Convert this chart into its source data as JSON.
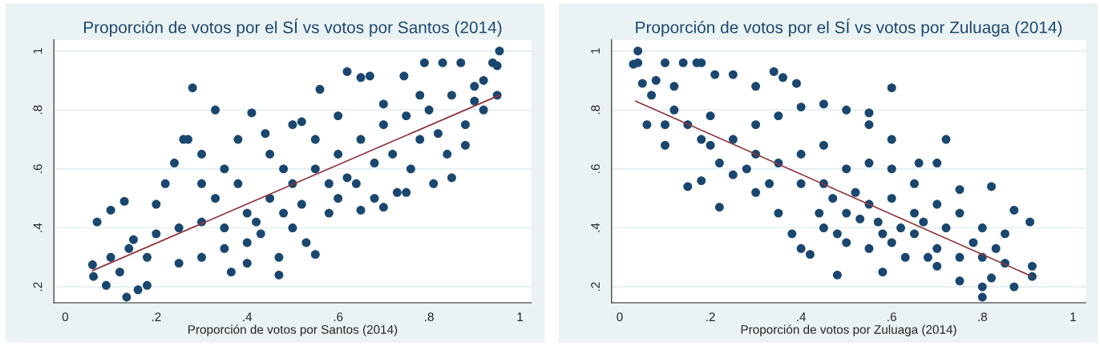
{
  "chart_data": [
    {
      "type": "scatter",
      "title": "Proporción de votos por el SÍ vs votos por Santos (2014)",
      "xlabel": "Proporción de votos por Santos (2014)",
      "xlim": [
        -0.025,
        1.025
      ],
      "ylim": [
        0.146,
        1.038
      ],
      "xticks": [
        0,
        {
          "value": 0.2,
          "label": ".2"
        },
        {
          "value": 0.4,
          "label": ".4"
        },
        {
          "value": 0.6,
          "label": ".6"
        },
        {
          "value": 0.8,
          "label": ".8"
        },
        1
      ],
      "yticks": [
        {
          "value": 0.2,
          "label": ".2"
        },
        {
          "value": 0.4,
          "label": ".4"
        },
        {
          "value": 0.6,
          "label": ".6"
        },
        {
          "value": 0.8,
          "label": ".8"
        },
        1
      ],
      "grid": "y",
      "marker": "circle",
      "series": [
        {
          "color": "#1a476f",
          "x": [
            0.955,
            0.28,
            0.135,
            0.06,
            0.062,
            0.07,
            0.09,
            0.1,
            0.13,
            0.16,
            0.18,
            0.365,
            0.47,
            0.55,
            0.33,
            0.41,
            0.56,
            0.62,
            0.65,
            0.67,
            0.745,
            0.79,
            0.83,
            0.87,
            0.94,
            0.95,
            0.9,
            0.95,
            0.81,
            0.85,
            0.7,
            0.75,
            0.65,
            0.73,
            0.6,
            0.5,
            0.52,
            0.44,
            0.26,
            0.27,
            0.22,
            0.24,
            0.2,
            0.15,
            0.1,
            0.12,
            0.2,
            0.25,
            0.3,
            0.35,
            0.4,
            0.35,
            0.4,
            0.45,
            0.5,
            0.55,
            0.6,
            0.65,
            0.7,
            0.75,
            0.8,
            0.85,
            0.9,
            0.3,
            0.35,
            0.45,
            0.55,
            0.6,
            0.7,
            0.78,
            0.42,
            0.48,
            0.52,
            0.58,
            0.62,
            0.68,
            0.72,
            0.78,
            0.82,
            0.88,
            0.92,
            0.3,
            0.25,
            0.18,
            0.14,
            0.33,
            0.38,
            0.43,
            0.5,
            0.53,
            0.47,
            0.4,
            0.3,
            0.38,
            0.48,
            0.58,
            0.64,
            0.68,
            0.76,
            0.84,
            0.88,
            0.92
          ],
          "values": [
            1.0,
            0.875,
            0.165,
            0.275,
            0.235,
            0.42,
            0.205,
            0.46,
            0.49,
            0.19,
            0.205,
            0.25,
            0.24,
            0.31,
            0.8,
            0.79,
            0.87,
            0.93,
            0.91,
            0.915,
            0.915,
            0.96,
            0.96,
            0.96,
            0.96,
            0.95,
            0.83,
            0.85,
            0.55,
            0.57,
            0.47,
            0.52,
            0.46,
            0.52,
            0.5,
            0.75,
            0.76,
            0.72,
            0.7,
            0.7,
            0.55,
            0.62,
            0.48,
            0.36,
            0.3,
            0.25,
            0.38,
            0.4,
            0.42,
            0.4,
            0.45,
            0.33,
            0.35,
            0.5,
            0.55,
            0.6,
            0.65,
            0.7,
            0.75,
            0.78,
            0.8,
            0.85,
            0.88,
            0.55,
            0.6,
            0.65,
            0.7,
            0.78,
            0.82,
            0.85,
            0.42,
            0.45,
            0.48,
            0.55,
            0.57,
            0.62,
            0.65,
            0.7,
            0.72,
            0.75,
            0.8,
            0.3,
            0.28,
            0.3,
            0.33,
            0.5,
            0.55,
            0.38,
            0.4,
            0.35,
            0.3,
            0.28,
            0.65,
            0.7,
            0.6,
            0.45,
            0.55,
            0.5,
            0.6,
            0.65,
            0.68,
            0.9
          ]
        },
        {
          "type": "line",
          "color": "#90353b",
          "marker": "none",
          "x": [
            0.06,
            0.955
          ],
          "values": [
            0.255,
            0.85
          ]
        }
      ]
    },
    {
      "type": "scatter",
      "title": "Proporción de votos por el SÍ vs votos por Zuluaga (2014)",
      "xlabel": "Proporción de votos por Zuluaga (2014)",
      "xlim": [
        -0.018,
        1.028
      ],
      "ylim": [
        0.146,
        1.038
      ],
      "xticks": [
        0,
        {
          "value": 0.2,
          "label": ".2"
        },
        {
          "value": 0.4,
          "label": ".4"
        },
        {
          "value": 0.6,
          "label": ".6"
        },
        {
          "value": 0.8,
          "label": ".8"
        },
        1
      ],
      "yticks": [
        {
          "value": 0.2,
          "label": ".2"
        },
        {
          "value": 0.4,
          "label": ".4"
        },
        {
          "value": 0.6,
          "label": ".6"
        },
        {
          "value": 0.8,
          "label": ".8"
        },
        1
      ],
      "grid": "y",
      "marker": "circle",
      "series": [
        {
          "color": "#1a476f",
          "x": [
            0.04,
            0.03,
            0.04,
            0.05,
            0.06,
            0.1,
            0.14,
            0.17,
            0.18,
            0.1,
            0.15,
            0.18,
            0.22,
            0.34,
            0.36,
            0.39,
            0.6,
            0.72,
            0.48,
            0.58,
            0.8,
            0.8,
            0.87,
            0.91,
            0.91,
            0.905,
            0.87,
            0.82,
            0.75,
            0.7,
            0.66,
            0.6,
            0.55,
            0.55,
            0.5,
            0.45,
            0.4,
            0.3,
            0.25,
            0.21,
            0.08,
            0.07,
            0.12,
            0.12,
            0.2,
            0.15,
            0.1,
            0.2,
            0.25,
            0.3,
            0.35,
            0.3,
            0.35,
            0.4,
            0.45,
            0.25,
            0.3,
            0.35,
            0.4,
            0.45,
            0.5,
            0.55,
            0.6,
            0.65,
            0.38,
            0.4,
            0.42,
            0.45,
            0.5,
            0.55,
            0.6,
            0.65,
            0.7,
            0.75,
            0.8,
            0.85,
            0.5,
            0.55,
            0.6,
            0.65,
            0.7,
            0.75,
            0.8,
            0.85,
            0.7,
            0.75,
            0.82,
            0.47,
            0.52,
            0.57,
            0.62,
            0.67,
            0.72,
            0.78,
            0.83,
            0.44,
            0.48,
            0.53,
            0.58,
            0.63,
            0.68,
            0.28,
            0.33,
            0.22,
            0.18
          ],
          "values": [
            1.0,
            0.955,
            0.96,
            0.89,
            0.75,
            0.96,
            0.96,
            0.96,
            0.96,
            0.68,
            0.54,
            0.56,
            0.47,
            0.93,
            0.91,
            0.89,
            0.875,
            0.7,
            0.24,
            0.25,
            0.165,
            0.2,
            0.2,
            0.235,
            0.27,
            0.42,
            0.46,
            0.54,
            0.53,
            0.62,
            0.62,
            0.7,
            0.79,
            0.75,
            0.8,
            0.82,
            0.81,
            0.88,
            0.92,
            0.92,
            0.9,
            0.85,
            0.88,
            0.8,
            0.78,
            0.75,
            0.75,
            0.68,
            0.7,
            0.75,
            0.78,
            0.65,
            0.62,
            0.65,
            0.68,
            0.58,
            0.52,
            0.45,
            0.55,
            0.55,
            0.6,
            0.62,
            0.6,
            0.55,
            0.38,
            0.33,
            0.31,
            0.4,
            0.45,
            0.48,
            0.5,
            0.45,
            0.48,
            0.45,
            0.4,
            0.38,
            0.35,
            0.33,
            0.35,
            0.38,
            0.33,
            0.3,
            0.3,
            0.28,
            0.27,
            0.22,
            0.23,
            0.5,
            0.52,
            0.42,
            0.4,
            0.42,
            0.4,
            0.35,
            0.33,
            0.45,
            0.38,
            0.43,
            0.38,
            0.3,
            0.3,
            0.6,
            0.55,
            0.62,
            0.7
          ]
        },
        {
          "type": "line",
          "color": "#90353b",
          "marker": "none",
          "x": [
            0.035,
            0.91
          ],
          "values": [
            0.83,
            0.235
          ]
        }
      ]
    }
  ]
}
